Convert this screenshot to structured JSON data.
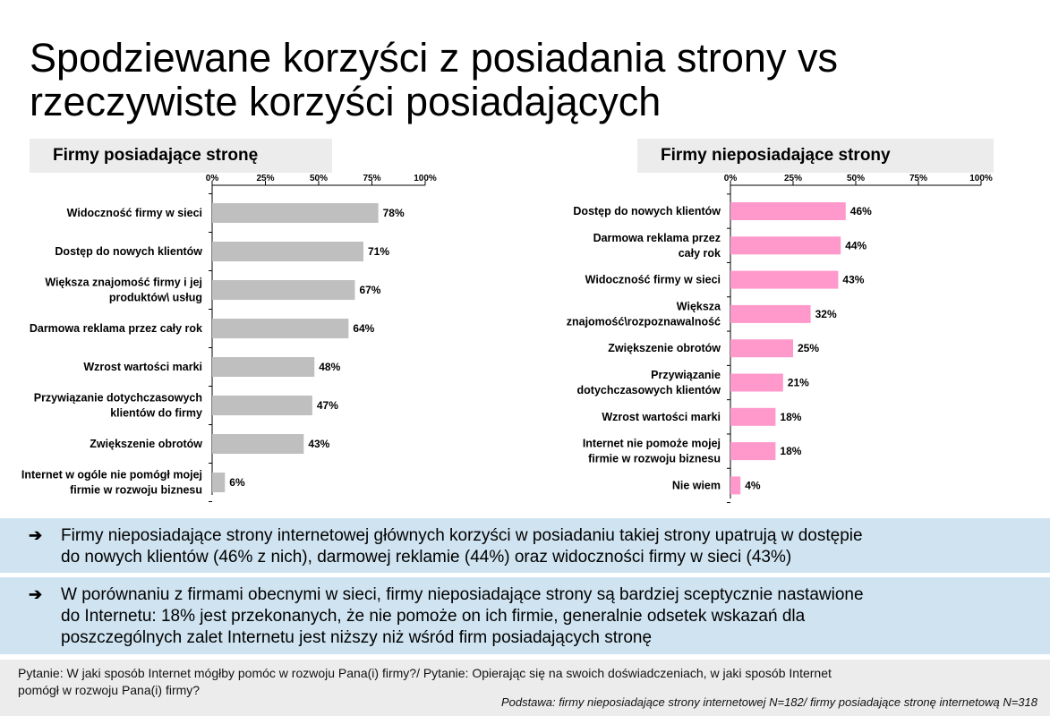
{
  "title": {
    "line1": "Spodziewane korzyści z posiadania strony vs",
    "line2": "rzeczywiste korzyści posiadających"
  },
  "colors": {
    "left_bar": "#bfbfbf",
    "right_bar": "#ff99cc",
    "bullet_bg": "#cfe3f0",
    "header_bg": "#ececec"
  },
  "chart_data": [
    {
      "type": "bar",
      "orientation": "horizontal",
      "title": "Firmy posiadające stronę",
      "ticks": [
        "0%",
        "25%",
        "50%",
        "75%",
        "100%"
      ],
      "xlim": [
        0,
        100
      ],
      "categories": [
        [
          "Widoczność firmy w sieci"
        ],
        [
          "Dostęp do nowych klientów"
        ],
        [
          "Większa znajomość firmy i jej",
          "produktów\\ usług"
        ],
        [
          "Darmowa reklama przez cały rok"
        ],
        [
          "Wzrost wartości marki"
        ],
        [
          "Przywiązanie dotychczasowych",
          "klientów do firmy"
        ],
        [
          "Zwiększenie obrotów"
        ],
        [
          "Internet w ogóle nie pomógł mojej",
          "firmie w rozwoju biznesu"
        ]
      ],
      "values": [
        78,
        71,
        67,
        64,
        48,
        47,
        43,
        6
      ],
      "value_labels": [
        "78%",
        "71%",
        "67%",
        "64%",
        "48%",
        "47%",
        "43%",
        "6%"
      ]
    },
    {
      "type": "bar",
      "orientation": "horizontal",
      "title": "Firmy nieposiadające strony",
      "ticks": [
        "0%",
        "25%",
        "50%",
        "75%",
        "100%"
      ],
      "xlim": [
        0,
        100
      ],
      "categories": [
        [
          "Dostęp do nowych klientów"
        ],
        [
          "Darmowa reklama przez",
          "cały rok"
        ],
        [
          "Widoczność firmy w sieci"
        ],
        [
          "Większa",
          "znajomość\\rozpoznawalność"
        ],
        [
          "Zwiększenie obrotów"
        ],
        [
          "Przywiązanie",
          "dotychczasowych klientów"
        ],
        [
          "Wzrost wartości marki"
        ],
        [
          "Internet nie pomoże mojej",
          "firmie w rozwoju biznesu"
        ],
        [
          "Nie wiem"
        ]
      ],
      "values": [
        46,
        44,
        43,
        32,
        25,
        21,
        18,
        18,
        4
      ],
      "value_labels": [
        "46%",
        "44%",
        "43%",
        "32%",
        "25%",
        "21%",
        "18%",
        "18%",
        "4%"
      ]
    }
  ],
  "bullets": [
    {
      "arrow": "➔",
      "lines": [
        "Firmy nieposiadające strony internetowej głównych korzyści w posiadaniu takiej strony upatrują w dostępie",
        "do nowych klientów (46% z nich), darmowej reklamie (44%) oraz widoczności firmy w sieci (43%)"
      ]
    },
    {
      "arrow": "➔",
      "lines": [
        "W porównaniu z firmami obecnymi w sieci, firmy nieposiadające strony są bardziej sceptycznie nastawione",
        "do Internetu: 18% jest przekonanych, że nie pomoże on ich firmie, generalnie odsetek wskazań dla",
        "poszczególnych zalet Internetu jest niższy niż wśród firm posiadających stronę"
      ]
    }
  ],
  "footer": {
    "question_line1": "Pytanie: W jaki sposób Internet mógłby pomóc w rozwoju Pana(i) firmy?/ Pytanie: Opierając się na swoich doświadczeniach, w jaki sposób Internet",
    "question_line2": "pomógł w rozwoju Pana(i) firmy?",
    "source": "Podstawa: firmy nieposiadające strony internetowej N=182/ firmy posiadające stronę internetową N=318"
  }
}
